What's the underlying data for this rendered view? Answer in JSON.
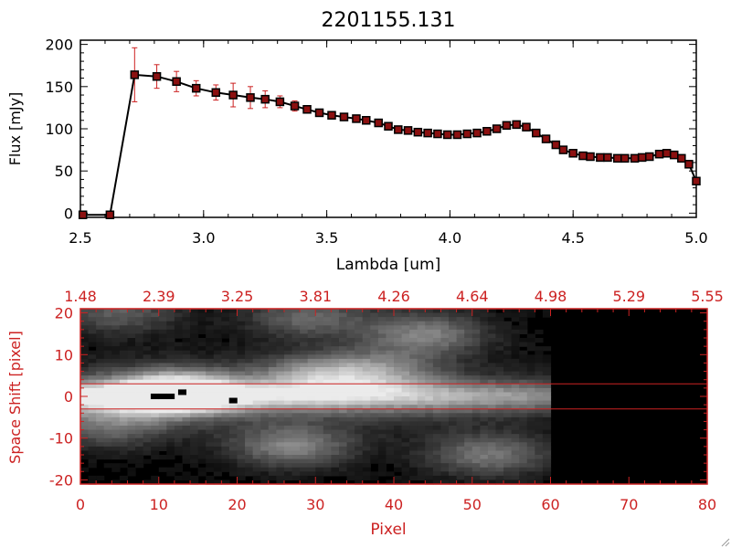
{
  "colors": {
    "spectrum_line": "#000000",
    "marker_fill": "#8b1010",
    "marker_stroke": "#000000",
    "error_bar": "#cc2020",
    "axis_black": "#000000",
    "axis_red": "#cc2222",
    "image_background": "#000000",
    "extraction_lines": "#cc2222"
  },
  "chart_data": [
    {
      "type": "line",
      "title": "2201155.131",
      "xlabel": "Lambda [um]",
      "ylabel": "Flux [mJy]",
      "xlim": [
        2.5,
        5.0
      ],
      "ylim": [
        -5,
        205
      ],
      "xticks": [
        "2.5",
        "3.0",
        "3.5",
        "4.0",
        "4.5",
        "5.0"
      ],
      "xtick_values": [
        2.5,
        3.0,
        3.5,
        4.0,
        4.5,
        5.0
      ],
      "yticks": [
        "0",
        "50",
        "100",
        "150",
        "200"
      ],
      "ytick_values": [
        0,
        50,
        100,
        150,
        200
      ],
      "grid": false,
      "series": [
        {
          "x": [
            2.51,
            2.62,
            2.72,
            2.81,
            2.89,
            2.97,
            3.05,
            3.12,
            3.19,
            3.25,
            3.31,
            3.37,
            3.42,
            3.47,
            3.52,
            3.57,
            3.62,
            3.66,
            3.71,
            3.75,
            3.79,
            3.83,
            3.87,
            3.91,
            3.95,
            3.99,
            4.03,
            4.07,
            4.11,
            4.15,
            4.19,
            4.23,
            4.27,
            4.31,
            4.35,
            4.39,
            4.43,
            4.46,
            4.5,
            4.54,
            4.57,
            4.61,
            4.64,
            4.68,
            4.71,
            4.75,
            4.78,
            4.81,
            4.85,
            4.88,
            4.91,
            4.94,
            4.97,
            5.0
          ],
          "y": [
            -2,
            -2,
            164,
            162,
            156,
            148,
            143,
            140,
            137,
            135,
            132,
            127,
            123,
            119,
            116,
            114,
            112,
            110,
            107,
            103,
            99,
            98,
            96,
            95,
            94,
            93,
            93,
            94,
            95,
            97,
            100,
            104,
            105,
            102,
            95,
            88,
            81,
            75,
            71,
            68,
            67,
            66,
            66,
            65,
            65,
            65,
            66,
            67,
            70,
            71,
            69,
            65,
            58,
            38
          ],
          "yerr": [
            0,
            0,
            32,
            14,
            12,
            9,
            9,
            14,
            13,
            10,
            7,
            6,
            4,
            3,
            2,
            2,
            2,
            2,
            2,
            1,
            1,
            1,
            1,
            1,
            1,
            1,
            1,
            1,
            1,
            1,
            1,
            1,
            1,
            1,
            1,
            1,
            1,
            1,
            1,
            1,
            1,
            1,
            1,
            1,
            1,
            1,
            1,
            1,
            1,
            1,
            1,
            1,
            1,
            1
          ]
        }
      ]
    },
    {
      "type": "heatmap",
      "xlabel": "Pixel",
      "ylabel": "Space Shift [pixel]",
      "xlim": [
        0,
        80
      ],
      "ylim": [
        -21,
        21
      ],
      "xticks": [
        "0",
        "10",
        "20",
        "30",
        "40",
        "50",
        "60",
        "70",
        "80"
      ],
      "xtick_values": [
        0,
        10,
        20,
        30,
        40,
        50,
        60,
        70,
        80
      ],
      "top_axis_ticks": [
        "1.48",
        "2.39",
        "3.25",
        "3.81",
        "4.26",
        "4.64",
        "4.98",
        "5.29",
        "5.55"
      ],
      "yticks": [
        "20",
        "10",
        "0",
        "-10",
        "-20"
      ],
      "ytick_values": [
        20,
        10,
        0,
        -10,
        -20
      ],
      "extraction_window": [
        -3,
        3
      ],
      "data_extent_pixels": [
        0,
        60
      ],
      "blobs": [
        {
          "x": 12,
          "y": 1,
          "peak": 0.95
        },
        {
          "x": 30,
          "y": 5,
          "peak": 0.45
        },
        {
          "x": 38,
          "y": 6,
          "peak": 0.4
        },
        {
          "x": 27,
          "y": -12,
          "peak": 0.5
        },
        {
          "x": 52,
          "y": -14,
          "peak": 0.45
        },
        {
          "x": 44,
          "y": 15,
          "peak": 0.5
        },
        {
          "x": 29,
          "y": 19,
          "peak": 0.4
        },
        {
          "x": 5,
          "y": 20,
          "peak": 0.35
        },
        {
          "x": 4,
          "y": -7,
          "peak": 0.35
        }
      ],
      "bad_pixels": [
        {
          "x": 9.5,
          "y": 0
        },
        {
          "x": 10.5,
          "y": 0
        },
        {
          "x": 11.5,
          "y": 0
        },
        {
          "x": 13,
          "y": 1
        },
        {
          "x": 19.5,
          "y": -1
        }
      ]
    }
  ]
}
